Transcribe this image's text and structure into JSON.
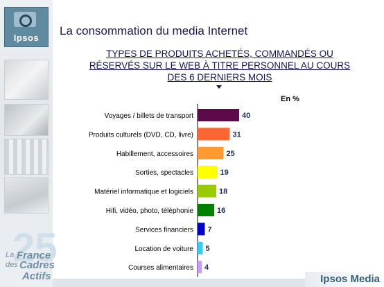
{
  "brand": {
    "logo_text": "Ipsos",
    "footer_logo": "Ipsos Media"
  },
  "badge": {
    "number": "25",
    "line1": "La",
    "line2": "France",
    "line3": "des",
    "line4": "Cadres",
    "line5": "Actifs"
  },
  "slide_title": "La consommation du media Internet",
  "chart_data": {
    "type": "bar",
    "orientation": "horizontal",
    "title": "TYPES DE PRODUITS ACHETÉS, COMMANDÉS OU RÉSERVÉS SUR LE WEB À TITRE PERSONNEL AU COURS DES 6 DERNIERS MOIS",
    "title_lines": [
      "TYPES DE PRODUITS ACHETÉS, COMMANDÉS OU",
      "RÉSERVÉS SUR LE WEB À TITRE PERSONNEL AU COURS",
      "DES 6 DERNIERS MOIS"
    ],
    "unit_label": "En %",
    "categories": [
      "Voyages / billets de transport",
      "Produits culturels (DVD, CD, livre)",
      "Habillement, accessoires",
      "Sorties, spectacles",
      "Matériel informatique et logiciels",
      "Hifi, vidéo, photo, téléphonie",
      "Services financiers",
      "Location de voiture",
      "Courses alimentaires"
    ],
    "values": [
      40,
      31,
      25,
      19,
      18,
      16,
      7,
      5,
      4
    ],
    "colors": [
      "#5c0a4a",
      "#ff6633",
      "#ff9933",
      "#ffff00",
      "#99cc00",
      "#008000",
      "#0000cc",
      "#33ccff",
      "#cc99ff"
    ],
    "data_labels": [
      "40",
      "31",
      "25",
      "19",
      "18",
      "16",
      "7",
      "5",
      "4"
    ],
    "xlim": [
      0,
      100
    ],
    "grid": false
  }
}
